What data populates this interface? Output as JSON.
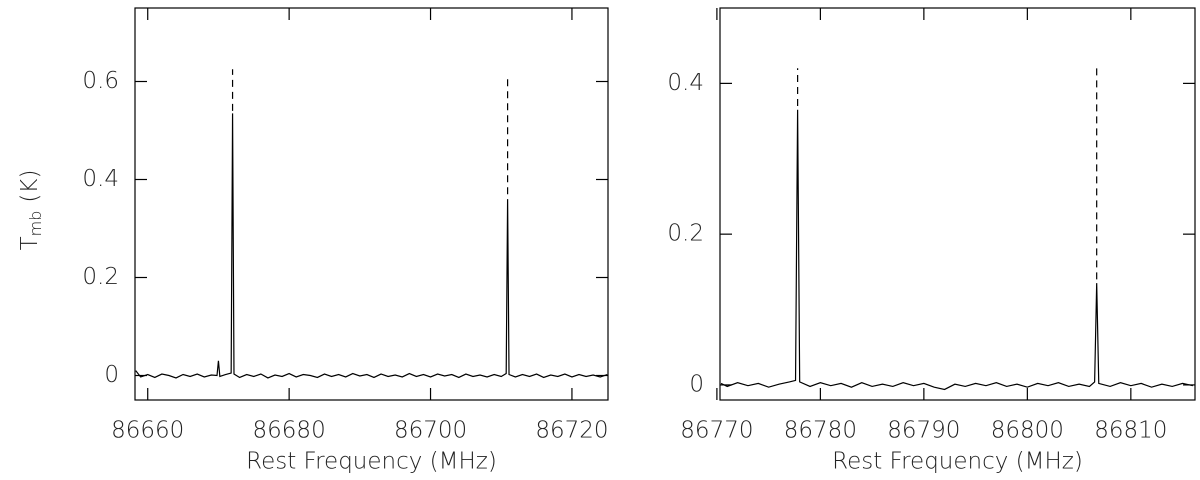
{
  "chart_data": [
    {
      "type": "line",
      "xlabel": "Rest Frequency (MHz)",
      "ylabel": {
        "main": "T",
        "sub": "mb",
        "unit": "(K)"
      },
      "xlim": [
        86658.2,
        86725.1
      ],
      "ylim": [
        -0.05,
        0.75
      ],
      "xticks": [
        86660,
        86680,
        86700,
        86720
      ],
      "yticks": [
        0,
        0.2,
        0.4,
        0.6
      ],
      "x": [
        86658.3,
        86659,
        86660,
        86661,
        86662,
        86663,
        86664,
        86665,
        86666,
        86667,
        86668,
        86669,
        86669.8,
        86670.0,
        86670.2,
        86671,
        86671.8,
        86672.0,
        86672.2,
        86673,
        86674,
        86675,
        86676,
        86677,
        86678,
        86679,
        86680,
        86681,
        86682,
        86683,
        86684,
        86685,
        86686,
        86687,
        86688,
        86689,
        86690,
        86691,
        86692,
        86693,
        86694,
        86695,
        86696,
        86697,
        86698,
        86699,
        86700,
        86701,
        86702,
        86703,
        86704,
        86705,
        86706,
        86707,
        86708,
        86709,
        86710,
        86710.7,
        86710.9,
        86711.1,
        86712,
        86713,
        86714,
        86715,
        86716,
        86717,
        86718,
        86719,
        86720,
        86721,
        86722,
        86723,
        86724,
        86725
      ],
      "series": [
        {
          "color": "#000000",
          "values": [
            0.01,
            -0.003,
            0.002,
            -0.004,
            0.003,
            0.0,
            -0.005,
            0.002,
            -0.002,
            0.003,
            -0.003,
            0.001,
            0.0,
            0.03,
            -0.002,
            0.002,
            0.005,
            0.535,
            0.003,
            -0.004,
            0.002,
            -0.002,
            0.003,
            -0.005,
            0.001,
            -0.002,
            0.004,
            -0.003,
            0.002,
            0.0,
            -0.004,
            0.003,
            -0.002,
            0.002,
            -0.003,
            0.004,
            -0.001,
            0.002,
            -0.004,
            0.003,
            -0.002,
            0.001,
            -0.003,
            0.004,
            -0.002,
            0.002,
            -0.003,
            0.003,
            -0.001,
            0.002,
            -0.004,
            0.003,
            -0.002,
            0.001,
            -0.003,
            0.002,
            -0.002,
            0.004,
            0.36,
            0.002,
            -0.003,
            0.002,
            -0.002,
            0.003,
            -0.004,
            0.001,
            -0.002,
            0.003,
            -0.003,
            0.002,
            -0.002,
            0.001,
            -0.003,
            0.002
          ]
        }
      ],
      "dashed_lines": [
        {
          "x": 86672.0,
          "y": [
            0.54,
            0.625
          ]
        },
        {
          "x": 86710.9,
          "y": [
            0.37,
            0.61
          ]
        }
      ]
    },
    {
      "type": "line",
      "xlabel": "Rest Frequency (MHz)",
      "xlim": [
        86770.3,
        86816.2
      ],
      "ylim": [
        -0.02,
        0.5
      ],
      "xticks": [
        86770,
        86780,
        86790,
        86800,
        86810
      ],
      "yticks": [
        0,
        0.2,
        0.4
      ],
      "x": [
        86770.4,
        86771,
        86772,
        86773,
        86774,
        86775,
        86776,
        86777,
        86777.6,
        86777.8,
        86778.0,
        86779,
        86780,
        86781,
        86782,
        86783,
        86784,
        86785,
        86786,
        86787,
        86788,
        86789,
        86790,
        86791,
        86792,
        86793,
        86794,
        86795,
        86796,
        86797,
        86798,
        86799,
        86800,
        86801,
        86802,
        86803,
        86804,
        86805,
        86806,
        86806.5,
        86806.7,
        86806.9,
        86808,
        86809,
        86810,
        86811,
        86812,
        86813,
        86814,
        86815,
        86816
      ],
      "series": [
        {
          "color": "#000000",
          "values": [
            0.002,
            -0.002,
            0.003,
            -0.001,
            0.002,
            -0.003,
            0.001,
            0.004,
            0.006,
            0.365,
            0.004,
            -0.002,
            0.003,
            -0.001,
            0.002,
            -0.003,
            0.003,
            -0.002,
            0.001,
            -0.002,
            0.003,
            -0.001,
            0.002,
            -0.003,
            -0.006,
            0.001,
            -0.002,
            0.002,
            -0.001,
            0.003,
            -0.002,
            0.001,
            -0.003,
            0.002,
            -0.001,
            0.003,
            -0.002,
            0.001,
            -0.002,
            0.004,
            0.135,
            0.002,
            -0.002,
            0.003,
            -0.001,
            0.002,
            -0.003,
            0.001,
            -0.002,
            0.002,
            -0.001
          ]
        }
      ],
      "dashed_lines": [
        {
          "x": 86777.8,
          "y": [
            0.37,
            0.42
          ]
        },
        {
          "x": 86806.7,
          "y": [
            0.14,
            0.42
          ]
        }
      ]
    }
  ]
}
